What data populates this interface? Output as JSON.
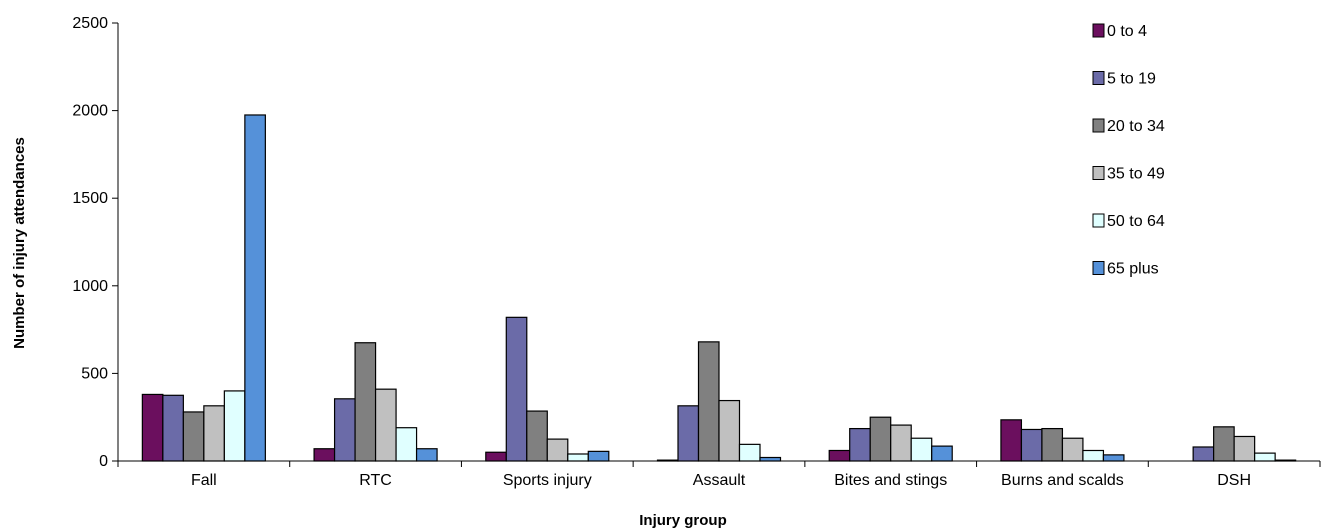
{
  "chart_data": {
    "type": "bar",
    "title": "",
    "xlabel": "Injury group",
    "ylabel": "Number of injury attendances",
    "ylim": [
      0,
      2500
    ],
    "yticks": [
      0,
      500,
      1000,
      1500,
      2000,
      2500
    ],
    "grid": false,
    "legend_position": "top-right",
    "categories": [
      "Fall",
      "RTC",
      "Sports injury",
      "Assault",
      "Bites and stings",
      "Burns and scalds",
      "DSH"
    ],
    "series": [
      {
        "name": "0 to 4",
        "color": "#6b0f5e",
        "values": [
          380,
          70,
          50,
          5,
          60,
          235,
          0
        ]
      },
      {
        "name": "5 to 19",
        "color": "#6b6ba8",
        "values": [
          375,
          355,
          820,
          315,
          185,
          180,
          80
        ]
      },
      {
        "name": "20 to 34",
        "color": "#808080",
        "values": [
          280,
          675,
          285,
          680,
          250,
          185,
          195
        ]
      },
      {
        "name": "35 to 49",
        "color": "#c0c0c0",
        "values": [
          315,
          410,
          125,
          345,
          205,
          130,
          140
        ]
      },
      {
        "name": "50 to 64",
        "color": "#e0ffff",
        "values": [
          400,
          190,
          40,
          95,
          130,
          60,
          45
        ]
      },
      {
        "name": "65 plus",
        "color": "#5591d9",
        "values": [
          1975,
          70,
          55,
          20,
          85,
          35,
          5
        ]
      }
    ]
  }
}
